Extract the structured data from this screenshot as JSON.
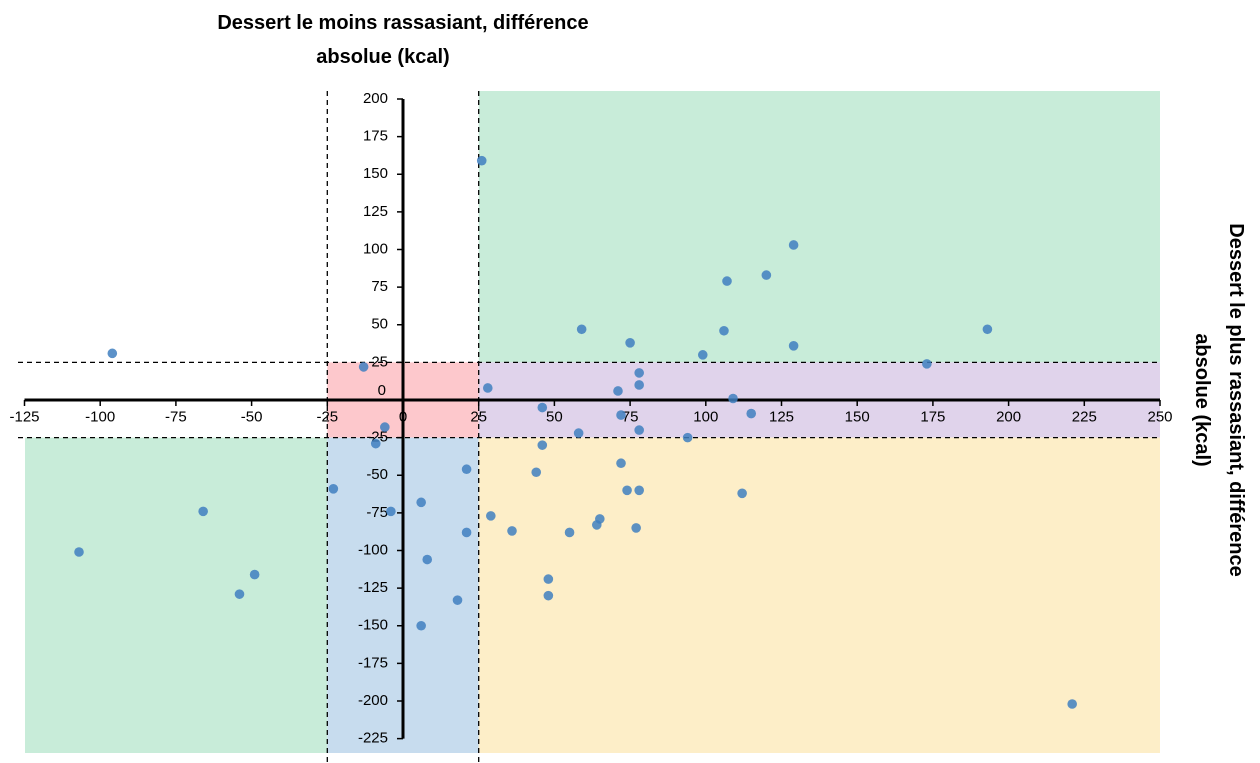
{
  "chart_data": {
    "type": "scatter",
    "title_lines": [
      "Dessert le moins rassasiant, différence",
      "absolue (kcal)"
    ],
    "ylabel_lines": [
      "Dessert le plus rassasiant, différence",
      "absolue (kcal)"
    ],
    "xlim": [
      -125,
      250
    ],
    "ylim": [
      -225,
      200
    ],
    "x_ticks": [
      -125,
      -100,
      -75,
      -50,
      -25,
      0,
      25,
      50,
      75,
      100,
      125,
      150,
      175,
      200,
      225,
      250
    ],
    "y_ticks": [
      200,
      175,
      150,
      125,
      100,
      75,
      50,
      25,
      0,
      -25,
      -50,
      -75,
      -100,
      -125,
      -150,
      -175,
      -200,
      -225
    ],
    "thresholds": {
      "x": [
        -25,
        25
      ],
      "y": [
        -25,
        25
      ]
    },
    "region_colors": {
      "green": "#c8ecd9",
      "red": "#fdc8cc",
      "purple": "#e0d3eb",
      "blue": "#c7dcee",
      "yellow": "#fdeec8"
    },
    "point_color": "#3f7fbf",
    "points": [
      {
        "x": -96,
        "y": 31
      },
      {
        "x": -107,
        "y": -101
      },
      {
        "x": -66,
        "y": -74
      },
      {
        "x": -49,
        "y": -116
      },
      {
        "x": -54,
        "y": -129
      },
      {
        "x": -23,
        "y": -59
      },
      {
        "x": -13,
        "y": 22
      },
      {
        "x": -9,
        "y": -29
      },
      {
        "x": -6,
        "y": -18
      },
      {
        "x": -4,
        "y": -74
      },
      {
        "x": 6,
        "y": -68
      },
      {
        "x": 8,
        "y": -106
      },
      {
        "x": 6,
        "y": -150
      },
      {
        "x": 18,
        "y": -133
      },
      {
        "x": 21,
        "y": -46
      },
      {
        "x": 21,
        "y": -88
      },
      {
        "x": 26,
        "y": 159
      },
      {
        "x": 28,
        "y": 8
      },
      {
        "x": 29,
        "y": -77
      },
      {
        "x": 36,
        "y": -87
      },
      {
        "x": 44,
        "y": -48
      },
      {
        "x": 46,
        "y": -5
      },
      {
        "x": 46,
        "y": -30
      },
      {
        "x": 48,
        "y": -119
      },
      {
        "x": 48,
        "y": -130
      },
      {
        "x": 55,
        "y": -88
      },
      {
        "x": 58,
        "y": -22
      },
      {
        "x": 59,
        "y": 47
      },
      {
        "x": 71,
        "y": 6
      },
      {
        "x": 72,
        "y": -10
      },
      {
        "x": 72,
        "y": -42
      },
      {
        "x": 74,
        "y": -60
      },
      {
        "x": 75,
        "y": 38
      },
      {
        "x": 64,
        "y": -83
      },
      {
        "x": 65,
        "y": -79
      },
      {
        "x": 77,
        "y": -85
      },
      {
        "x": 78,
        "y": 18
      },
      {
        "x": 78,
        "y": 10
      },
      {
        "x": 78,
        "y": -60
      },
      {
        "x": 78,
        "y": -20
      },
      {
        "x": 94,
        "y": -25
      },
      {
        "x": 99,
        "y": 30
      },
      {
        "x": 106,
        "y": 46
      },
      {
        "x": 107,
        "y": 79
      },
      {
        "x": 109,
        "y": 1
      },
      {
        "x": 112,
        "y": -62
      },
      {
        "x": 115,
        "y": -9
      },
      {
        "x": 120,
        "y": 83
      },
      {
        "x": 129,
        "y": 103
      },
      {
        "x": 129,
        "y": 36
      },
      {
        "x": 173,
        "y": 24
      },
      {
        "x": 193,
        "y": 47
      },
      {
        "x": 221,
        "y": -202
      }
    ]
  }
}
